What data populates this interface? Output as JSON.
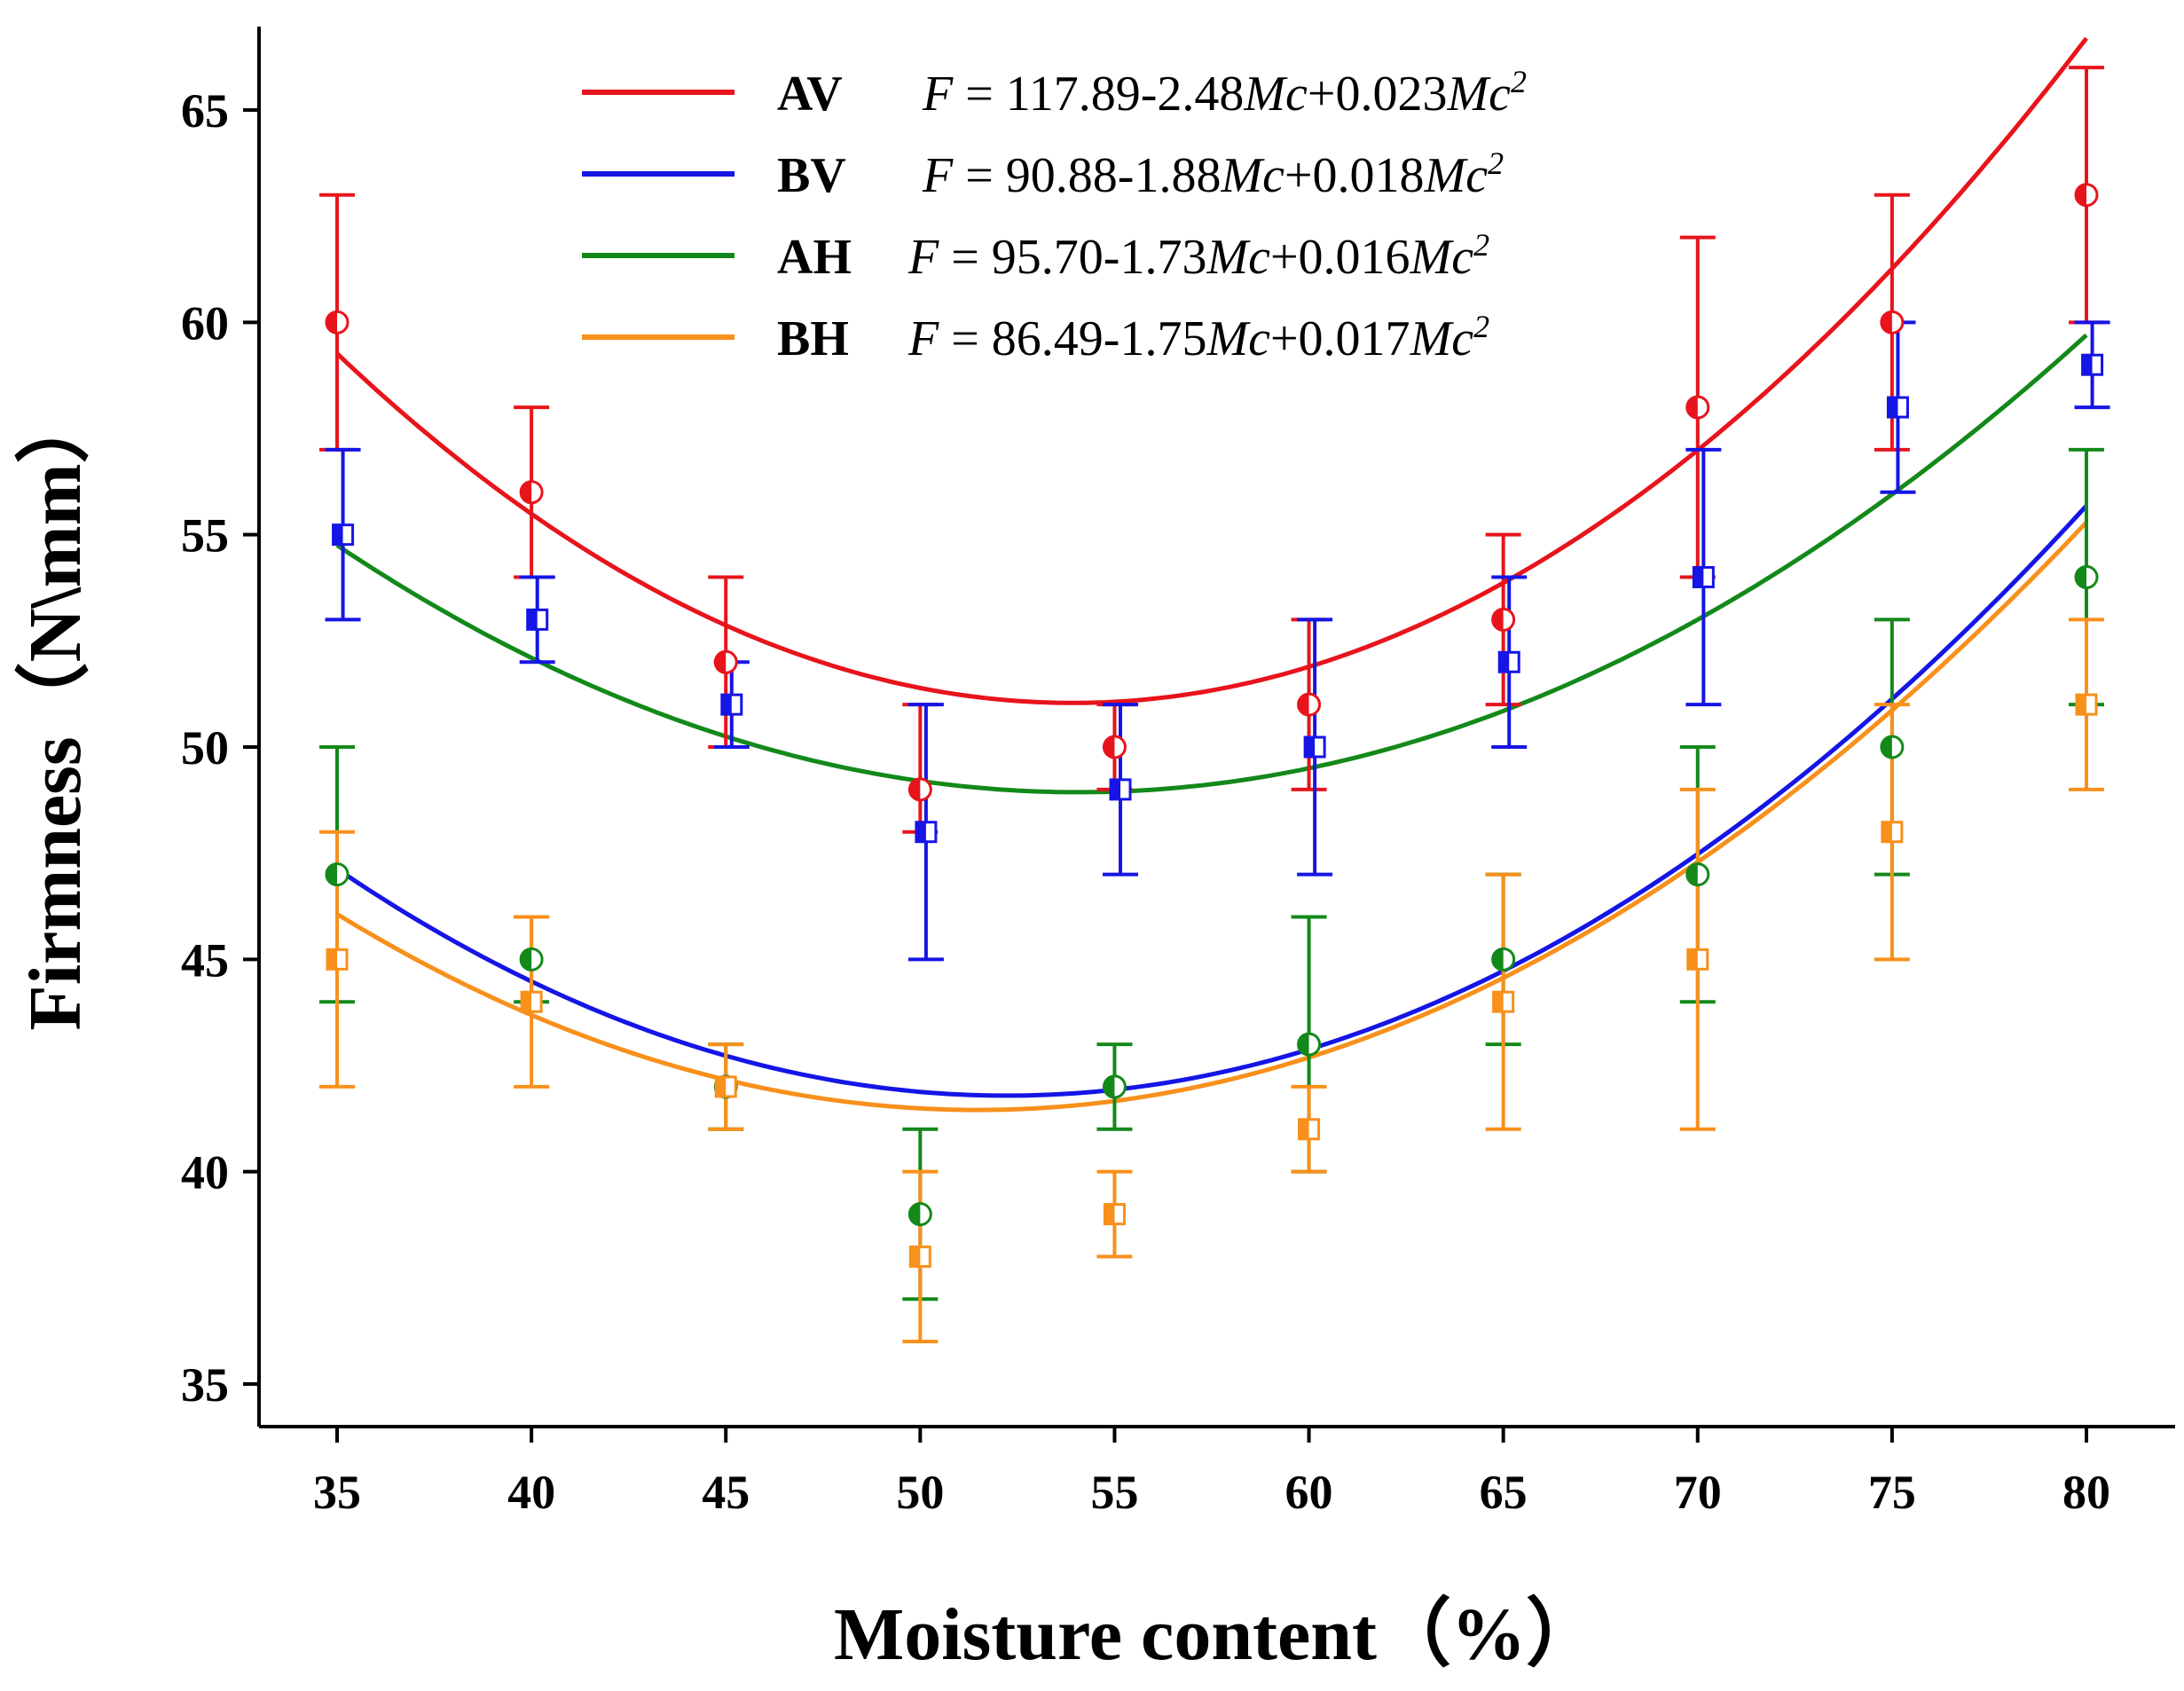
{
  "chart_data": {
    "type": "line",
    "xlabel": "Moisture content（%）",
    "ylabel": "Firmness（N\\mm）",
    "xlim": [
      33,
      83
    ],
    "ylim": [
      34,
      67
    ],
    "x_ticks": [
      35,
      40,
      45,
      50,
      55,
      60,
      65,
      70,
      75,
      80
    ],
    "y_ticks": [
      35,
      40,
      45,
      50,
      55,
      60,
      65
    ],
    "x": [
      35,
      40,
      45,
      50,
      55,
      60,
      65,
      70,
      75,
      80
    ],
    "legend_position": "top-center",
    "series": [
      {
        "name": "AV",
        "color": "#e8141c",
        "marker": "circle",
        "equation": {
          "intercept": "117.89",
          "linear": "2.48",
          "quadratic": "0.023"
        },
        "coef": [
          117.89,
          -2.48,
          0.023
        ],
        "values": [
          60,
          56,
          52,
          49,
          50,
          51,
          53,
          58,
          60,
          63
        ],
        "err_hi": [
          63,
          58,
          54,
          51,
          51,
          53,
          55,
          62,
          63,
          66
        ],
        "err_lo": [
          57,
          54,
          50,
          48,
          49,
          49,
          51,
          54,
          57,
          60
        ],
        "x_offset": 0
      },
      {
        "name": "BV",
        "color": "#1515e6",
        "marker": "square",
        "equation": {
          "intercept": "90.88",
          "linear": "1.88",
          "quadratic": "0.018"
        },
        "coef": [
          90.88,
          -1.88,
          0.018
        ],
        "values": [
          55,
          53,
          51,
          48,
          49,
          50,
          52,
          54,
          58,
          59
        ],
        "err_hi": [
          57,
          54,
          52,
          51,
          51,
          53,
          54,
          57,
          60,
          60
        ],
        "err_lo": [
          53,
          52,
          50,
          45,
          47,
          47,
          50,
          51,
          56,
          58
        ],
        "x_offset": 0.15
      },
      {
        "name": "AH",
        "color": "#13891a",
        "marker": "circle",
        "equation": {
          "intercept": "95.70",
          "linear": "1.73",
          "quadratic": "0.016"
        },
        "coef": [
          95.7,
          -1.73,
          0.016
        ],
        "values": [
          47,
          45,
          42,
          39,
          42,
          43,
          45,
          47,
          50,
          54
        ],
        "err_hi": [
          50,
          46,
          43,
          41,
          43,
          46,
          47,
          50,
          53,
          57
        ],
        "err_lo": [
          44,
          44,
          41,
          37,
          41,
          40,
          43,
          44,
          47,
          51
        ],
        "x_offset": 0
      },
      {
        "name": "BH",
        "color": "#f8901c",
        "marker": "square",
        "equation": {
          "intercept": "86.49",
          "linear": "1.75",
          "quadratic": "0.017"
        },
        "coef": [
          86.49,
          -1.75,
          0.017
        ],
        "values": [
          45,
          44,
          42,
          38,
          39,
          41,
          44,
          45,
          48,
          51
        ],
        "err_hi": [
          48,
          46,
          43,
          40,
          40,
          42,
          47,
          49,
          51,
          53
        ],
        "err_lo": [
          42,
          42,
          41,
          36,
          38,
          40,
          41,
          41,
          45,
          49
        ],
        "x_offset": 0
      }
    ]
  }
}
